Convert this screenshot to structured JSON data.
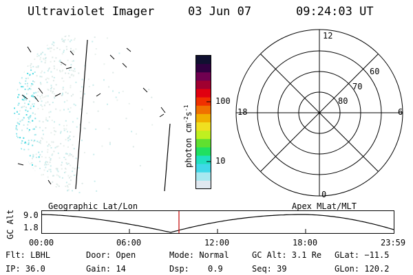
{
  "header": {
    "instrument": "Ultraviolet Imager",
    "date": "03 Jun 07",
    "time": "09:24:03 UT"
  },
  "left_panel": {
    "caption": "Geographic Lat/Lon"
  },
  "right_panel": {
    "caption": "Apex MLat/MLT",
    "mlt_labels": [
      "12",
      "18",
      "6",
      "0"
    ],
    "lat_labels": [
      "60",
      "70",
      "80"
    ]
  },
  "colorbar": {
    "unit_label": "photon cm",
    "unit_exp1": "-2",
    "unit_s": "s",
    "unit_exp2": "-1",
    "tick_labels": [
      "100",
      "10"
    ],
    "colors": [
      "#101030",
      "#300040",
      "#700050",
      "#a00030",
      "#e00010",
      "#f03000",
      "#f07000",
      "#f0b000",
      "#f0e020",
      "#c0f020",
      "#60e030",
      "#20e060",
      "#20e0c0",
      "#40d8e8",
      "#a8e8f0",
      "#e0e8f0"
    ]
  },
  "timeline": {
    "y_axis_label": "GC Alt",
    "y_ticks": [
      "9.0",
      "1.8"
    ],
    "x_ticks": [
      "00:00",
      "06:00",
      "12:00",
      "18:00",
      "23:59"
    ],
    "marker_color": "#c00000"
  },
  "footer": {
    "row1": [
      "Flt: LBHL",
      "Door: Open",
      "Mode: Normal",
      "GC Alt: 3.1 Re",
      "GLat: −11.5"
    ],
    "row2": [
      "IP: 36.0",
      "Gain: 14",
      "Dsp:",
      "0.9",
      "Seq: 39",
      "GLon: 120.2"
    ]
  }
}
